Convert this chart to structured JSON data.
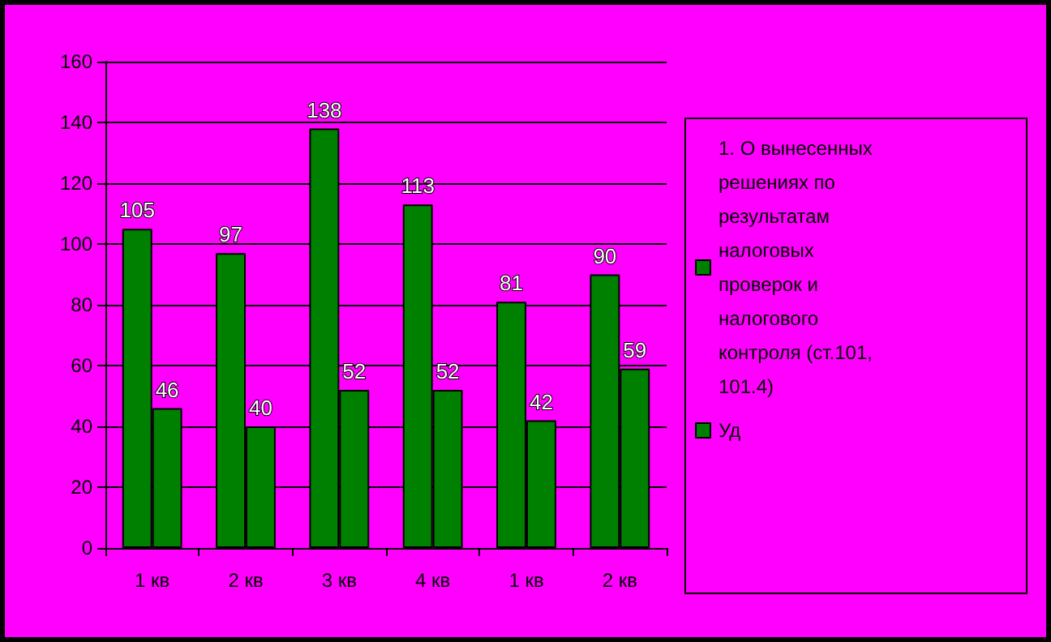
{
  "chart_data": {
    "type": "bar",
    "categories": [
      "1 кв",
      "2 кв",
      "3 кв",
      "4 кв",
      "1 кв",
      "2 кв"
    ],
    "series": [
      {
        "name": "1. О вынесенных решениях по результатам налоговых проверок и налогового контроля (ст.101, 101.4)",
        "color": "#008000",
        "values": [
          105,
          97,
          138,
          113,
          81,
          90
        ]
      },
      {
        "name": "Уд",
        "color": "#008000",
        "values": [
          46,
          40,
          52,
          52,
          42,
          59
        ]
      }
    ],
    "ylim": [
      0,
      160
    ],
    "yticks": [
      0,
      20,
      40,
      60,
      80,
      100,
      120,
      140,
      160
    ],
    "grid": "y",
    "legend": "right",
    "data_labels": true
  }
}
